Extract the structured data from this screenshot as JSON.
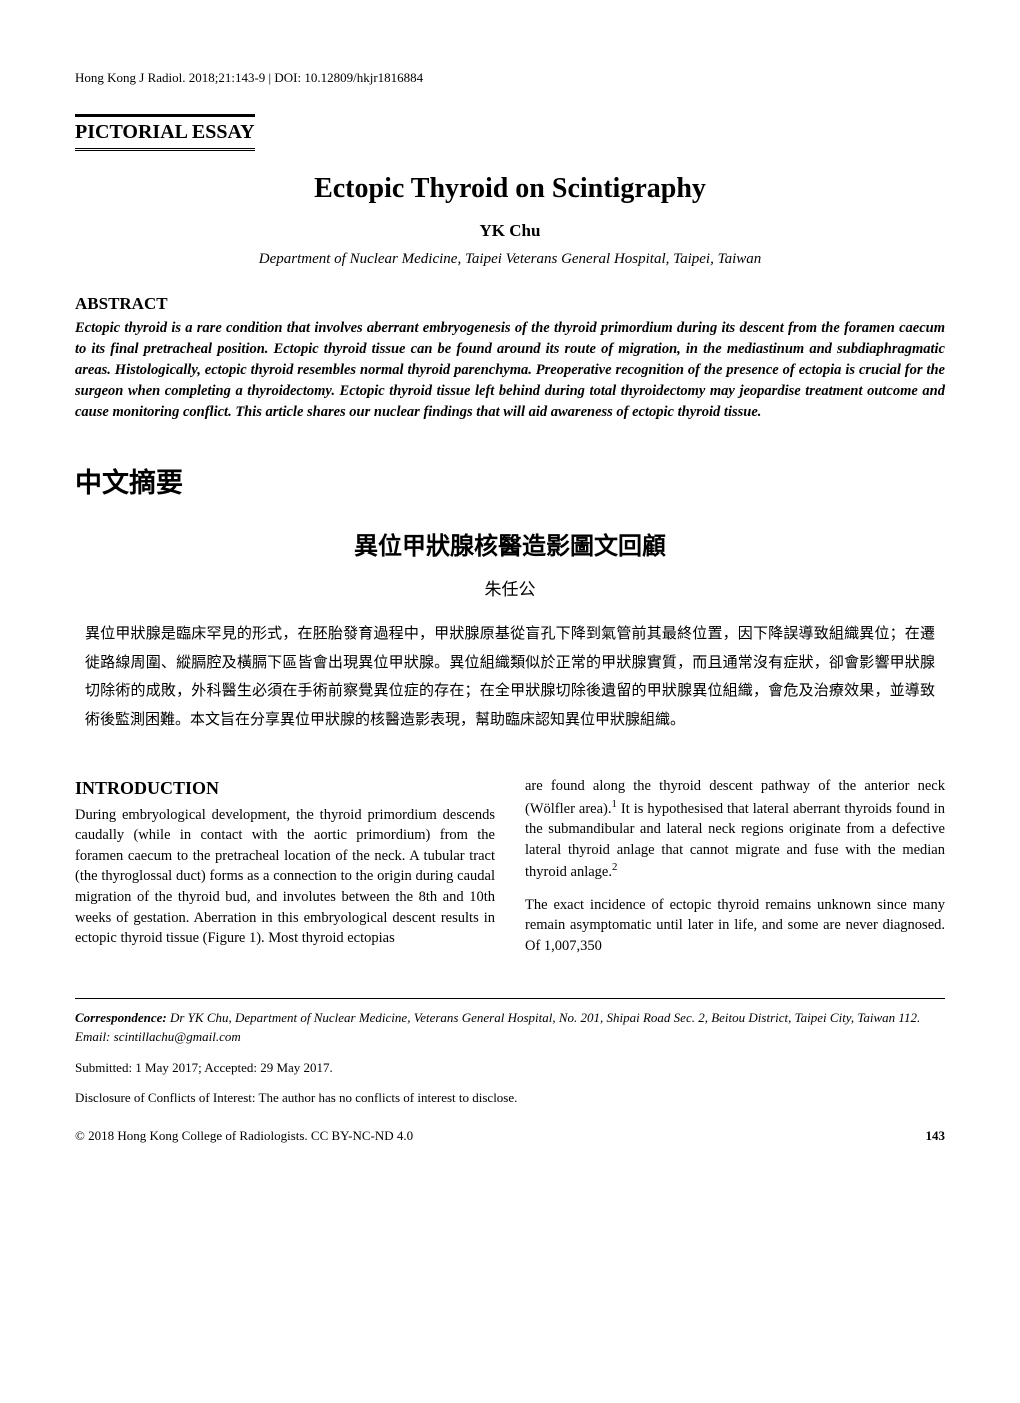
{
  "journal_ref": "Hong Kong J Radiol. 2018;21:143-9   |   DOI: 10.12809/hkjr1816884",
  "section_type": "PICTORIAL ESSAY",
  "title": "Ectopic Thyroid on Scintigraphy",
  "author": "YK Chu",
  "affiliation": "Department of Nuclear Medicine, Taipei Veterans General Hospital, Taipei, Taiwan",
  "abstract_heading": "ABSTRACT",
  "abstract_text": "Ectopic thyroid is a rare condition that involves aberrant embryogenesis of the thyroid primordium during its descent from the foramen caecum to its final pretracheal position. Ectopic thyroid tissue can be found around its route of migration, in the mediastinum and subdiaphragmatic areas. Histologically, ectopic thyroid resembles normal thyroid parenchyma. Preoperative recognition of the presence of ectopia is crucial for the surgeon when completing a thyroidectomy. Ectopic thyroid tissue left behind during total thyroidectomy may jeopardise treatment outcome and cause monitoring conflict. This article shares our nuclear findings that will aid awareness of ectopic thyroid tissue.",
  "chinese_summary_heading": "中文摘要",
  "chinese_title": "異位甲狀腺核醫造影圖文回顧",
  "chinese_author": "朱任公",
  "chinese_abstract": "異位甲狀腺是臨床罕見的形式，在胚胎發育過程中，甲狀腺原基從盲孔下降到氣管前其最終位置，因下降誤導致組織異位；在遷徙路線周圍、縱膈腔及橫膈下區皆會出現異位甲狀腺。異位組織類似於正常的甲狀腺實質，而且通常沒有症狀，卻會影響甲狀腺切除術的成敗，外科醫生必須在手術前察覺異位症的存在；在全甲狀腺切除後遺留的甲狀腺異位組織，會危及治療效果，並導致術後監測困難。本文旨在分享異位甲狀腺的核醫造影表現，幫助臨床認知異位甲狀腺組織。",
  "intro_heading": "INTRODUCTION",
  "intro_col1_p1": "During embryological development, the thyroid primordium descends caudally (while in contact with the aortic primordium) from the foramen caecum to the pretracheal location of the neck. A tubular tract (the thyroglossal duct) forms as a connection to the origin during caudal migration of the thyroid bud, and involutes between the 8th and 10th weeks of gestation. Aberration in this embryological descent results in ectopic thyroid tissue (Figure 1). Most thyroid ectopias",
  "intro_col2_p1_pre": "are found along the thyroid descent pathway of the anterior neck (Wölfler area).",
  "intro_col2_p1_post": " It is hypothesised that lateral aberrant thyroids found in the submandibular and lateral neck regions originate from a defective lateral thyroid anlage that cannot migrate and fuse with the median thyroid anlage.",
  "intro_col2_p2": "The exact incidence of ectopic thyroid remains unknown since many remain asymptomatic until later in life, and some are never diagnosed. Of 1,007,350",
  "correspondence_label": "Correspondence: ",
  "correspondence_text": "Dr YK Chu, Department of Nuclear Medicine, Veterans General Hospital, No. 201, Shipai Road Sec. 2, Beitou District, Taipei City, Taiwan 112.",
  "email": "Email: scintillachu@gmail.com",
  "submitted": "Submitted: 1 May 2017; Accepted: 29 May 2017.",
  "disclosure": "Disclosure of Conflicts of Interest: The author has no conflicts of interest to disclose.",
  "copyright": "© 2018 Hong Kong College of Radiologists. CC BY-NC-ND 4.0",
  "page_number": "143"
}
